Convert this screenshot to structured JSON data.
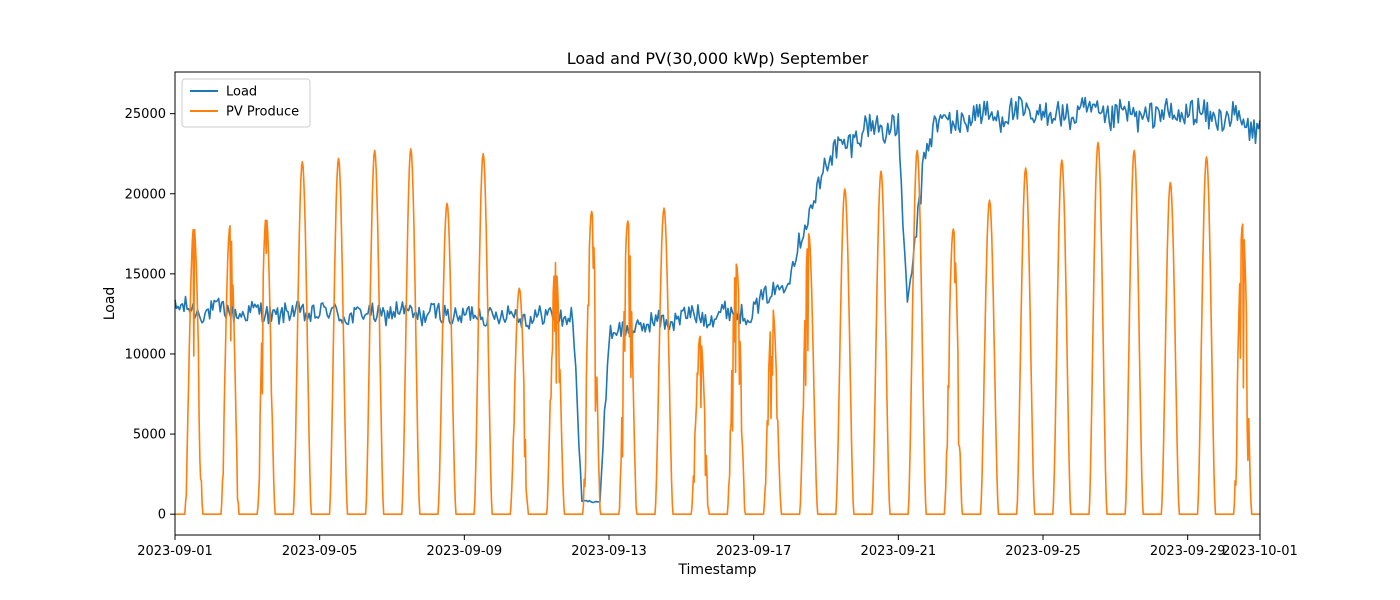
{
  "chart_data": {
    "type": "line",
    "title": "Load and PV(30,000 kWp) September",
    "xlabel": "Timestamp",
    "ylabel": "Load",
    "x_start": "2023-09-01",
    "x_end": "2023-10-01",
    "xlim": [
      "2023-09-01",
      "2023-10-01"
    ],
    "ylim": [
      -1300,
      27600
    ],
    "grid": false,
    "legend_position": "top-left",
    "x_ticks": [
      "2023-09-01",
      "2023-09-05",
      "2023-09-09",
      "2023-09-13",
      "2023-09-17",
      "2023-09-21",
      "2023-09-25",
      "2023-09-29",
      "2023-10-01"
    ],
    "y_ticks": [
      0,
      5000,
      10000,
      15000,
      20000,
      25000
    ],
    "series": [
      {
        "name": "Load",
        "color": "#1f77b4",
        "points": [
          [
            "2023-09-01",
            12800
          ],
          [
            "2023-09-02",
            12700
          ],
          [
            "2023-09-03",
            12600
          ],
          [
            "2023-09-04",
            12500
          ],
          [
            "2023-09-05",
            12600
          ],
          [
            "2023-09-06",
            12400
          ],
          [
            "2023-09-07",
            12600
          ],
          [
            "2023-09-08",
            12500
          ],
          [
            "2023-09-09",
            12400
          ],
          [
            "2023-09-10",
            12500
          ],
          [
            "2023-09-11",
            12300
          ],
          [
            "2023-09-12",
            12400
          ],
          [
            "2023-09-12T06:00",
            800
          ],
          [
            "2023-09-12T18:00",
            800
          ],
          [
            "2023-09-13",
            11200
          ],
          [
            "2023-09-14",
            11800
          ],
          [
            "2023-09-15",
            12300
          ],
          [
            "2023-09-16",
            12500
          ],
          [
            "2023-09-17",
            12700
          ],
          [
            "2023-09-18",
            15000
          ],
          [
            "2023-09-19",
            22000
          ],
          [
            "2023-09-20",
            24000
          ],
          [
            "2023-09-21",
            24300
          ],
          [
            "2023-09-21T06:00",
            12500
          ],
          [
            "2023-09-21T18:00",
            23000
          ],
          [
            "2023-09-22",
            24200
          ],
          [
            "2023-09-23",
            24800
          ],
          [
            "2023-09-24",
            25000
          ],
          [
            "2023-09-25",
            24900
          ],
          [
            "2023-09-26",
            25000
          ],
          [
            "2023-09-27",
            24800
          ],
          [
            "2023-09-28",
            24900
          ],
          [
            "2023-09-29",
            25000
          ],
          [
            "2023-09-30",
            24800
          ],
          [
            "2023-10-01",
            24000
          ]
        ]
      },
      {
        "name": "PV Produce",
        "color": "#ff7f0e",
        "daily_peaks": [
          [
            "2023-09-01",
            18000
          ],
          [
            "2023-09-02",
            18000
          ],
          [
            "2023-09-03",
            18600
          ],
          [
            "2023-09-04",
            22000
          ],
          [
            "2023-09-05",
            22200
          ],
          [
            "2023-09-06",
            22700
          ],
          [
            "2023-09-07",
            22800
          ],
          [
            "2023-09-08",
            19400
          ],
          [
            "2023-09-09",
            22500
          ],
          [
            "2023-09-10",
            14100
          ],
          [
            "2023-09-11",
            15700
          ],
          [
            "2023-09-12",
            18900
          ],
          [
            "2023-09-13",
            18300
          ],
          [
            "2023-09-14",
            19100
          ],
          [
            "2023-09-15",
            11100
          ],
          [
            "2023-09-16",
            15600
          ],
          [
            "2023-09-17",
            12900
          ],
          [
            "2023-09-18",
            17500
          ],
          [
            "2023-09-19",
            20300
          ],
          [
            "2023-09-20",
            21400
          ],
          [
            "2023-09-21",
            22700
          ],
          [
            "2023-09-22",
            17800
          ],
          [
            "2023-09-23",
            19600
          ],
          [
            "2023-09-24",
            21600
          ],
          [
            "2023-09-25",
            22100
          ],
          [
            "2023-09-26",
            23200
          ],
          [
            "2023-09-27",
            22700
          ],
          [
            "2023-09-28",
            20700
          ],
          [
            "2023-09-29",
            22300
          ],
          [
            "2023-09-30",
            18100
          ]
        ]
      }
    ]
  }
}
